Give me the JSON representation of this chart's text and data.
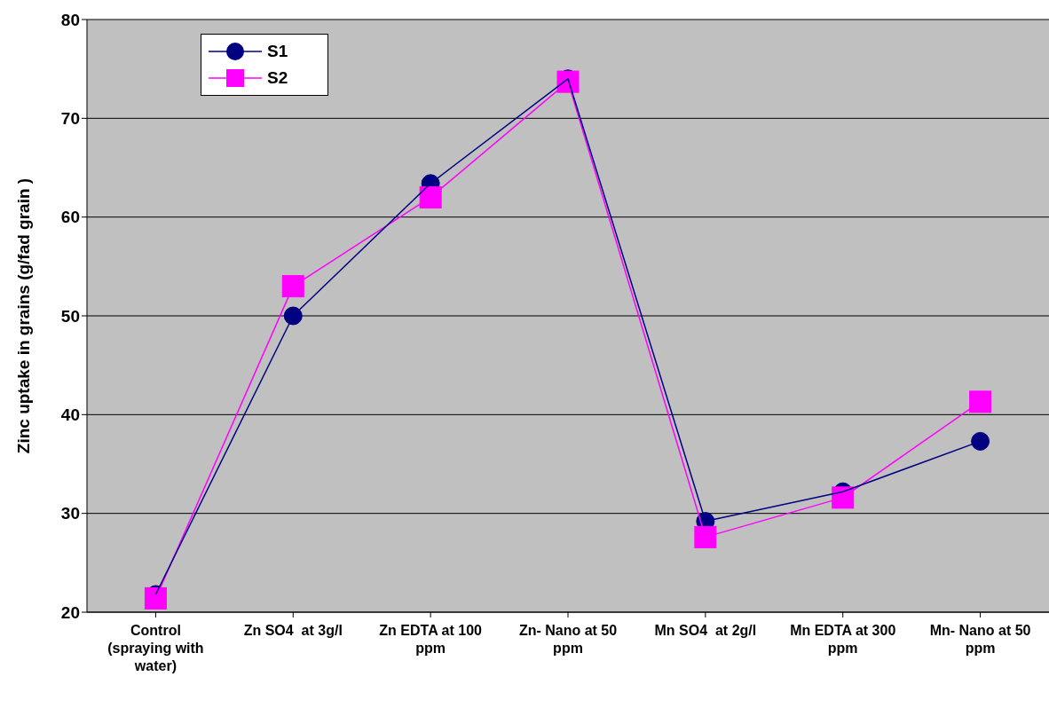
{
  "chart_data": {
    "type": "line",
    "ylabel": "Zinc   uptake  in grains (g/fad grain )",
    "categories": [
      "Control (spraying with water)",
      "Zn SO4  at 3g/l",
      "Zn EDTA at 100 ppm",
      "Zn- Nano at 50 ppm",
      "Mn SO4  at 2g/l",
      "Mn EDTA at 300 ppm",
      "Mn- Nano at 50 ppm"
    ],
    "series": [
      {
        "name": "S1",
        "color": "#000080",
        "marker": "circle",
        "values": [
          21.8,
          50.0,
          63.4,
          74.0,
          29.2,
          32.2,
          37.3
        ]
      },
      {
        "name": "S2",
        "color": "#ff00ff",
        "marker": "square",
        "values": [
          21.4,
          53.0,
          62.0,
          73.7,
          27.6,
          31.6,
          41.3
        ]
      }
    ],
    "ylim": [
      20,
      80
    ],
    "yticks": [
      20,
      30,
      40,
      50,
      60,
      70,
      80
    ],
    "grid": "y",
    "legend": "top left"
  }
}
